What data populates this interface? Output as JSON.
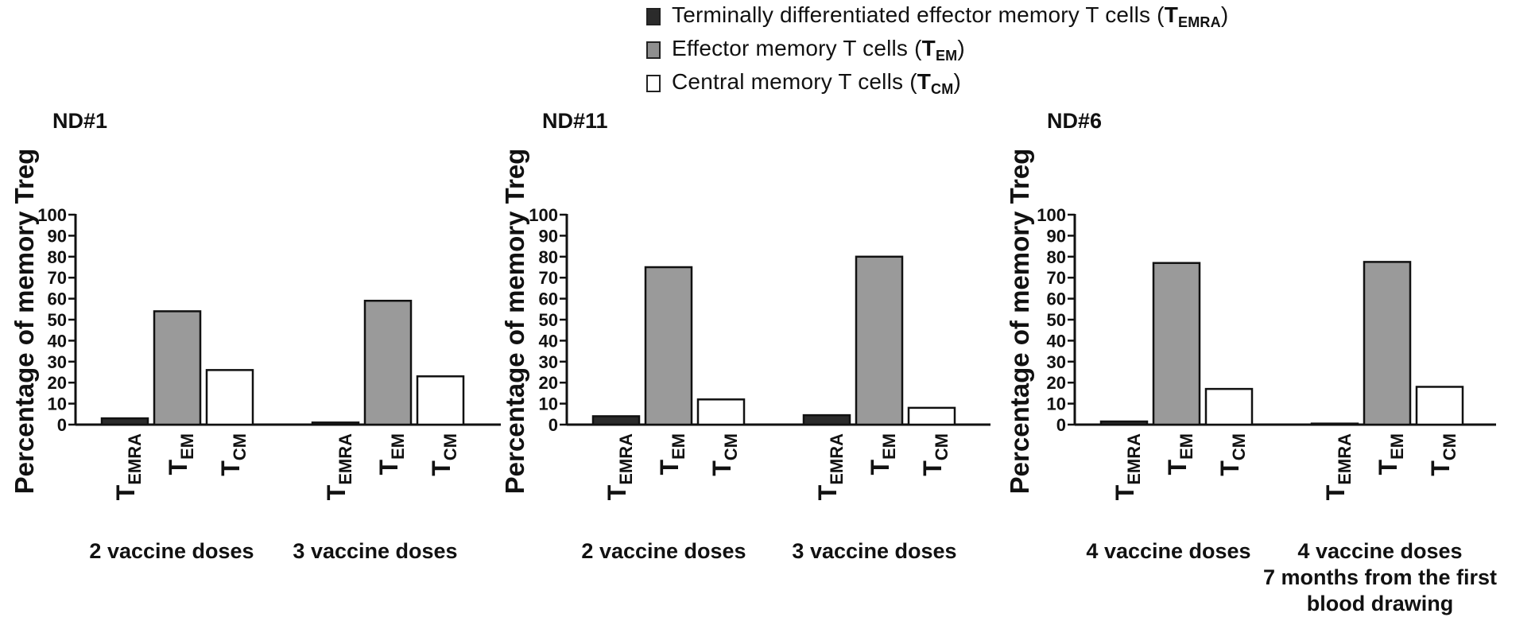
{
  "legend": {
    "items": [
      {
        "text": "Terminally differentiated effector memory T cells (",
        "sym": "T",
        "sub": "EMRA",
        "close": ")",
        "color": "#2b2b2b"
      },
      {
        "text": "Effector memory T cells (",
        "sym": "T",
        "sub": "EM",
        "close": ")",
        "color": "#8f8f8f"
      },
      {
        "text": "Central memory T cells (",
        "sym": "T",
        "sub": "CM",
        "close": ")",
        "color": "#ffffff"
      }
    ]
  },
  "chart_data": [
    {
      "type": "bar",
      "title": "ND#1",
      "ylabel": "Percentage of memory Treg",
      "ylim": [
        0,
        100
      ],
      "yticks": [
        "0",
        "10",
        "20",
        "30",
        "40",
        "50",
        "60",
        "70",
        "80",
        "90",
        "100"
      ],
      "categories": [
        {
          "sym": "T",
          "sub": "EMRA"
        },
        {
          "sym": "T",
          "sub": "EM"
        },
        {
          "sym": "T",
          "sub": "CM"
        }
      ],
      "groups": [
        {
          "label": [
            "2 vaccine doses"
          ],
          "values": [
            3,
            54,
            26
          ]
        },
        {
          "label": [
            "3 vaccine doses"
          ],
          "values": [
            1,
            59,
            23
          ]
        }
      ]
    },
    {
      "type": "bar",
      "title": "ND#11",
      "ylabel": "Percentage of memory Treg",
      "ylim": [
        0,
        100
      ],
      "yticks": [
        "0",
        "10",
        "20",
        "30",
        "40",
        "50",
        "60",
        "70",
        "80",
        "90",
        "100"
      ],
      "categories": [
        {
          "sym": "T",
          "sub": "EMRA"
        },
        {
          "sym": "T",
          "sub": "EM"
        },
        {
          "sym": "T",
          "sub": "CM"
        }
      ],
      "groups": [
        {
          "label": [
            "2 vaccine doses"
          ],
          "values": [
            4,
            75,
            12
          ]
        },
        {
          "label": [
            "3 vaccine doses"
          ],
          "values": [
            4.5,
            80,
            8
          ]
        }
      ]
    },
    {
      "type": "bar",
      "title": "ND#6",
      "ylabel": "Percentage of memory Treg",
      "ylim": [
        0,
        100
      ],
      "yticks": [
        "0",
        "10",
        "20",
        "30",
        "40",
        "50",
        "60",
        "70",
        "80",
        "90",
        "100"
      ],
      "categories": [
        {
          "sym": "T",
          "sub": "EMRA"
        },
        {
          "sym": "T",
          "sub": "EM"
        },
        {
          "sym": "T",
          "sub": "CM"
        }
      ],
      "groups": [
        {
          "label": [
            "4 vaccine doses"
          ],
          "values": [
            1.5,
            77,
            17
          ]
        },
        {
          "label": [
            "4 vaccine doses",
            "7 months from the first",
            "blood drawing"
          ],
          "values": [
            0.5,
            77.5,
            18
          ]
        }
      ]
    }
  ]
}
